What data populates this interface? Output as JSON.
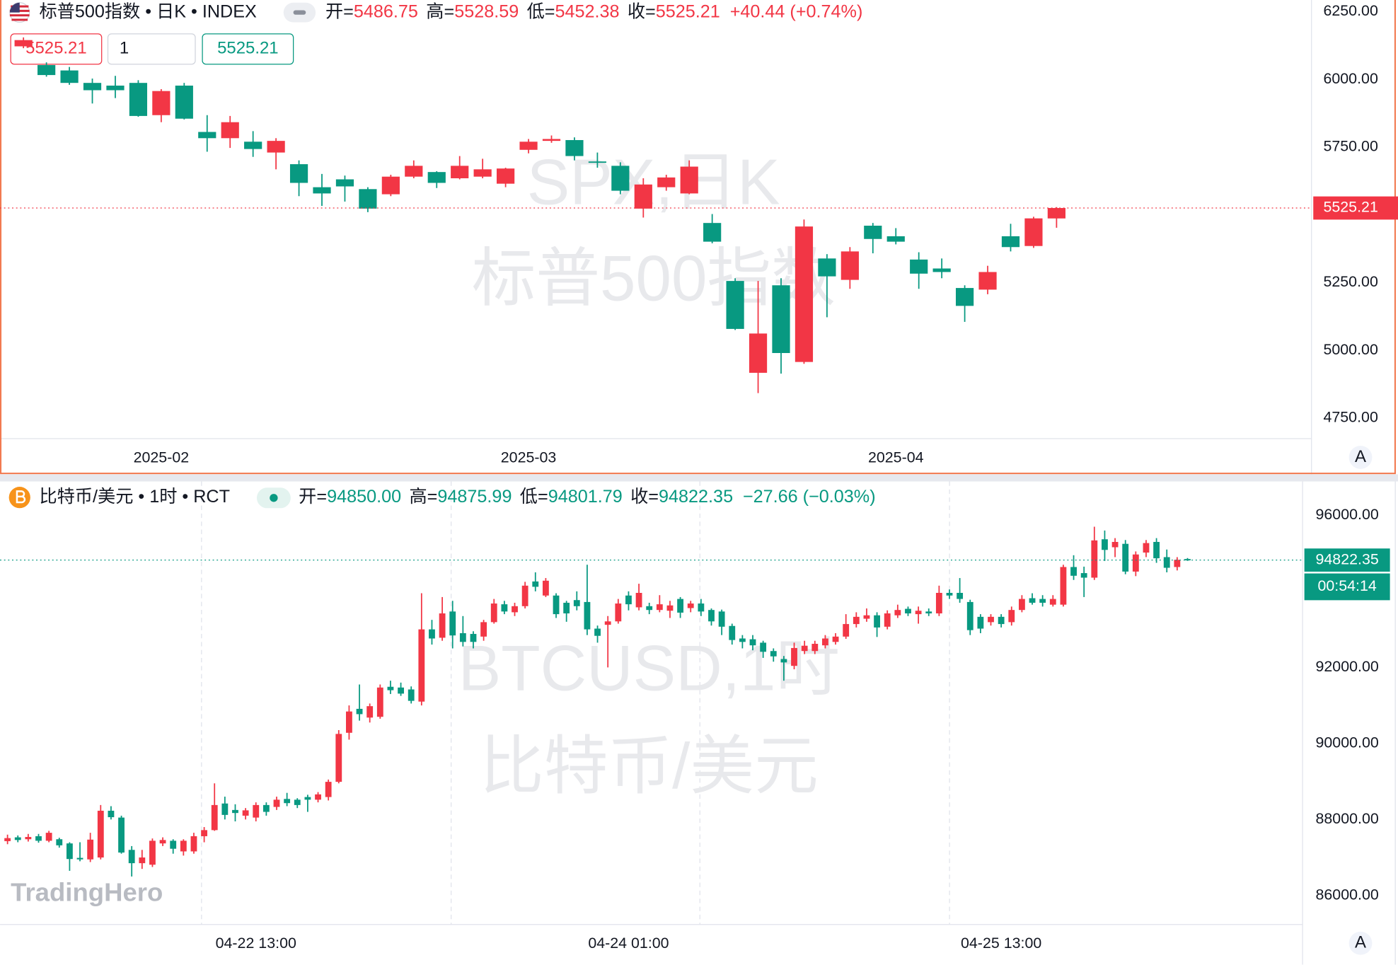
{
  "chart_data": [
    {
      "type": "candlestick",
      "title": "标普500指数 • 日K • INDEX",
      "watermark": [
        "SPX,日K",
        "标普500指数"
      ],
      "fields": [
        {
          "label": "开=",
          "value": "5486.75"
        },
        {
          "label": "高=",
          "value": "5528.59"
        },
        {
          "label": "低=",
          "value": "5452.38"
        },
        {
          "label": "收=",
          "value": "5525.21"
        }
      ],
      "change": "+40.44 (+0.74%)",
      "quantity": "1",
      "auto_scale_label": "A",
      "up_color": "#f23645",
      "down_color": "#089981",
      "ylim": [
        4674,
        6293
      ],
      "yticks": [
        {
          "value": 6250,
          "label": "6250.00"
        },
        {
          "value": 6000,
          "label": "6000.00"
        },
        {
          "value": 5750,
          "label": "5750.00"
        },
        {
          "value": 5250,
          "label": "5250.00"
        },
        {
          "value": 5000,
          "label": "5000.00"
        },
        {
          "value": 4750,
          "label": "4750.00"
        }
      ],
      "categories": [
        null,
        null,
        null,
        null,
        null,
        null,
        "2025-02",
        null,
        null,
        null,
        null,
        null,
        null,
        null,
        null,
        null,
        null,
        null,
        null,
        null,
        null,
        null,
        "2025-03",
        null,
        null,
        null,
        null,
        null,
        null,
        null,
        null,
        null,
        null,
        null,
        null,
        null,
        null,
        null,
        "2025-04",
        null,
        null,
        null,
        null,
        null,
        null,
        null
      ],
      "candles": [
        [
          6122,
          6155,
          6115,
          6145
        ],
        [
          6053,
          6063,
          6010,
          6016
        ],
        [
          6033,
          6046,
          5980,
          5987
        ],
        [
          5987,
          6003,
          5911,
          5960
        ],
        [
          5977,
          6013,
          5931,
          5960
        ],
        [
          5987,
          5997,
          5862,
          5865
        ],
        [
          5868,
          5964,
          5842,
          5957
        ],
        [
          5977,
          5987,
          5852,
          5855
        ],
        [
          5806,
          5868,
          5733,
          5783
        ],
        [
          5783,
          5865,
          5747,
          5842
        ],
        [
          5770,
          5809,
          5714,
          5743
        ],
        [
          5730,
          5783,
          5668,
          5773
        ],
        [
          5687,
          5701,
          5569,
          5618
        ],
        [
          5602,
          5651,
          5533,
          5579
        ],
        [
          5631,
          5645,
          5549,
          5605
        ],
        [
          5595,
          5602,
          5510,
          5523
        ],
        [
          5576,
          5648,
          5569,
          5641
        ],
        [
          5641,
          5701,
          5635,
          5681
        ],
        [
          5658,
          5661,
          5599,
          5618
        ],
        [
          5635,
          5717,
          5631,
          5681
        ],
        [
          5641,
          5707,
          5635,
          5668
        ],
        [
          5615,
          5674,
          5602,
          5671
        ],
        [
          5740,
          5780,
          5727,
          5770
        ],
        [
          5773,
          5793,
          5766,
          5780
        ],
        [
          5776,
          5786,
          5701,
          5717
        ],
        [
          5697,
          5730,
          5674,
          5694
        ],
        [
          5681,
          5694,
          5576,
          5589
        ],
        [
          5523,
          5635,
          5490,
          5612
        ],
        [
          5602,
          5648,
          5589,
          5638
        ],
        [
          5579,
          5701,
          5576,
          5678
        ],
        [
          5470,
          5503,
          5395,
          5401
        ],
        [
          5256,
          5266,
          5075,
          5079
        ],
        [
          4917,
          5256,
          4842,
          5062
        ],
        [
          5240,
          5266,
          4914,
          4990
        ],
        [
          4957,
          5483,
          4950,
          5457
        ],
        [
          5339,
          5355,
          5122,
          5273
        ],
        [
          5260,
          5381,
          5227,
          5365
        ],
        [
          5460,
          5470,
          5358,
          5411
        ],
        [
          5421,
          5451,
          5391,
          5401
        ],
        [
          5335,
          5362,
          5227,
          5283
        ],
        [
          5302,
          5339,
          5266,
          5289
        ],
        [
          5230,
          5240,
          5105,
          5164
        ],
        [
          5224,
          5312,
          5207,
          5289
        ],
        [
          5421,
          5467,
          5365,
          5381
        ],
        [
          5385,
          5493,
          5378,
          5487
        ],
        [
          5486.75,
          5528.59,
          5452.38,
          5525.21
        ]
      ]
    },
    {
      "type": "candlestick",
      "title": "比特币/美元 • 1时 • RCT",
      "watermark": [
        "BTCUSD,1时",
        "比特币/美元"
      ],
      "fields": [
        {
          "label": "开=",
          "value": "94850.00"
        },
        {
          "label": "高=",
          "value": "94875.99"
        },
        {
          "label": "低=",
          "value": "94801.79"
        },
        {
          "label": "收=",
          "value": "94822.35"
        }
      ],
      "change": "−27.66 (−0.03%)",
      "countdown": "00:54:14",
      "auto_scale_label": "A",
      "up_color": "#f23645",
      "down_color": "#089981",
      "ylim": [
        85237,
        96891
      ],
      "yticks": [
        {
          "value": 96000,
          "label": "96000.00"
        },
        {
          "value": 92000,
          "label": "92000.00"
        },
        {
          "value": 90000,
          "label": "90000.00"
        },
        {
          "value": 88000,
          "label": "88000.00"
        },
        {
          "value": 86000,
          "label": "86000.00"
        }
      ],
      "categories": [
        null,
        null,
        null,
        null,
        null,
        null,
        null,
        null,
        null,
        null,
        null,
        null,
        null,
        null,
        null,
        null,
        null,
        null,
        null,
        null,
        null,
        null,
        null,
        null,
        "04-22 13:00",
        null,
        null,
        null,
        null,
        null,
        null,
        null,
        null,
        null,
        null,
        null,
        null,
        null,
        null,
        null,
        null,
        null,
        null,
        null,
        null,
        null,
        null,
        null,
        null,
        null,
        null,
        null,
        null,
        null,
        null,
        null,
        null,
        null,
        null,
        null,
        "04-24 01:00",
        null,
        null,
        null,
        null,
        null,
        null,
        null,
        null,
        null,
        null,
        null,
        null,
        null,
        null,
        null,
        null,
        null,
        null,
        null,
        null,
        null,
        null,
        null,
        null,
        null,
        null,
        null,
        null,
        null,
        null,
        null,
        null,
        null,
        null,
        null,
        "04-25 13:00",
        null,
        null,
        null,
        null,
        null,
        null,
        null,
        null,
        null,
        null,
        null,
        null,
        null,
        null,
        null,
        null,
        null,
        null
      ],
      "candles": [
        [
          87430,
          87600,
          87350,
          87510
        ],
        [
          87530,
          87580,
          87400,
          87460
        ],
        [
          87480,
          87620,
          87420,
          87540
        ],
        [
          87560,
          87620,
          87390,
          87440
        ],
        [
          87440,
          87700,
          87400,
          87650
        ],
        [
          87480,
          87520,
          87260,
          87320
        ],
        [
          87370,
          87400,
          86650,
          86960
        ],
        [
          86990,
          87400,
          86900,
          86950
        ],
        [
          86950,
          87650,
          86880,
          87470
        ],
        [
          87000,
          88380,
          86950,
          88230
        ],
        [
          88230,
          88350,
          88000,
          88060
        ],
        [
          88050,
          88100,
          87100,
          87130
        ],
        [
          87200,
          87300,
          86500,
          86850
        ],
        [
          86850,
          87200,
          86700,
          87000
        ],
        [
          86810,
          87500,
          86750,
          87440
        ],
        [
          87370,
          87530,
          87300,
          87460
        ],
        [
          87440,
          87480,
          87100,
          87230
        ],
        [
          87160,
          87480,
          87050,
          87440
        ],
        [
          87160,
          87650,
          87100,
          87560
        ],
        [
          87560,
          87800,
          87400,
          87720
        ],
        [
          87720,
          88950,
          87700,
          88380
        ],
        [
          88420,
          88600,
          88000,
          88120
        ],
        [
          88250,
          88400,
          87950,
          88170
        ],
        [
          88100,
          88300,
          88000,
          88240
        ],
        [
          88050,
          88450,
          87950,
          88380
        ],
        [
          88380,
          88450,
          88100,
          88200
        ],
        [
          88330,
          88600,
          88250,
          88520
        ],
        [
          88540,
          88700,
          88350,
          88430
        ],
        [
          88520,
          88560,
          88300,
          88380
        ],
        [
          88590,
          88650,
          88200,
          88520
        ],
        [
          88520,
          88720,
          88450,
          88660
        ],
        [
          88590,
          89050,
          88500,
          88990
        ],
        [
          88990,
          90350,
          88950,
          90250
        ],
        [
          90280,
          91000,
          90100,
          90840
        ],
        [
          90910,
          91550,
          90600,
          90770
        ],
        [
          90680,
          91050,
          90550,
          90980
        ],
        [
          90700,
          91550,
          90650,
          91470
        ],
        [
          91490,
          91650,
          91300,
          91400
        ],
        [
          91470,
          91600,
          91250,
          91310
        ],
        [
          91420,
          91500,
          91050,
          91120
        ],
        [
          91100,
          93950,
          91000,
          93000
        ],
        [
          93000,
          93250,
          92600,
          92760
        ],
        [
          92780,
          93850,
          92700,
          93420
        ],
        [
          93470,
          93750,
          92500,
          92840
        ],
        [
          92900,
          93350,
          92550,
          92670
        ],
        [
          92880,
          92950,
          92500,
          92670
        ],
        [
          92810,
          93250,
          92700,
          93190
        ],
        [
          93190,
          93800,
          93150,
          93680
        ],
        [
          93660,
          93750,
          93400,
          93470
        ],
        [
          93450,
          93700,
          93350,
          93610
        ],
        [
          93610,
          94250,
          93550,
          94150
        ],
        [
          94260,
          94500,
          94000,
          94120
        ],
        [
          93890,
          94350,
          93850,
          94280
        ],
        [
          93890,
          93950,
          93300,
          93400
        ],
        [
          93700,
          93750,
          93200,
          93420
        ],
        [
          93770,
          94000,
          93500,
          93610
        ],
        [
          93720,
          94700,
          92850,
          93000
        ],
        [
          93020,
          93100,
          92650,
          92830
        ],
        [
          93120,
          93350,
          92000,
          93210
        ],
        [
          93210,
          93800,
          93150,
          93680
        ],
        [
          93890,
          94000,
          93500,
          93660
        ],
        [
          93580,
          94200,
          93500,
          93960
        ],
        [
          93610,
          93700,
          93400,
          93510
        ],
        [
          93510,
          93900,
          93450,
          93660
        ],
        [
          93490,
          93750,
          93300,
          93630
        ],
        [
          93800,
          93850,
          93300,
          93440
        ],
        [
          93560,
          93750,
          93450,
          93680
        ],
        [
          93680,
          93800,
          93350,
          93470
        ],
        [
          93510,
          93550,
          93100,
          93210
        ],
        [
          93470,
          93520,
          92850,
          93070
        ],
        [
          93090,
          93150,
          92600,
          92720
        ],
        [
          92760,
          92850,
          92500,
          92670
        ],
        [
          92740,
          92850,
          92450,
          92580
        ],
        [
          92650,
          92700,
          92250,
          92410
        ],
        [
          92430,
          92500,
          92150,
          92290
        ],
        [
          92220,
          92300,
          91650,
          92130
        ],
        [
          92040,
          92650,
          91950,
          92510
        ],
        [
          92430,
          92700,
          92350,
          92570
        ],
        [
          92430,
          92700,
          92350,
          92620
        ],
        [
          92580,
          92850,
          92500,
          92760
        ],
        [
          92670,
          92900,
          92600,
          92810
        ],
        [
          92810,
          93400,
          92750,
          93140
        ],
        [
          93140,
          93450,
          93050,
          93330
        ],
        [
          93280,
          93550,
          93200,
          93370
        ],
        [
          93370,
          93450,
          92800,
          93050
        ],
        [
          93070,
          93500,
          93000,
          93420
        ],
        [
          93370,
          93650,
          93300,
          93510
        ],
        [
          93540,
          93600,
          93350,
          93420
        ],
        [
          93400,
          93600,
          93150,
          93490
        ],
        [
          93470,
          93550,
          93350,
          93420
        ],
        [
          93420,
          94150,
          93350,
          93960
        ],
        [
          93960,
          94050,
          93800,
          93890
        ],
        [
          93960,
          94350,
          93700,
          93800
        ],
        [
          93720,
          93780,
          92850,
          92980
        ],
        [
          93330,
          93400,
          92900,
          93020
        ],
        [
          93190,
          93400,
          93100,
          93330
        ],
        [
          93330,
          93400,
          93050,
          93140
        ],
        [
          93190,
          93600,
          93100,
          93510
        ],
        [
          93510,
          93900,
          93450,
          93800
        ],
        [
          93820,
          93950,
          93650,
          93700
        ],
        [
          93800,
          93900,
          93600,
          93700
        ],
        [
          93650,
          93900,
          93600,
          93800
        ],
        [
          93650,
          94700,
          93600,
          94640
        ],
        [
          94640,
          94950,
          94300,
          94410
        ],
        [
          94480,
          94650,
          93850,
          94360
        ],
        [
          94360,
          95700,
          94300,
          95340
        ],
        [
          95370,
          95600,
          94800,
          95090
        ],
        [
          95160,
          95400,
          94900,
          95300
        ],
        [
          95250,
          95350,
          94450,
          94520
        ],
        [
          94520,
          95050,
          94400,
          94970
        ],
        [
          95020,
          95350,
          94900,
          95270
        ],
        [
          95300,
          95400,
          94750,
          94870
        ],
        [
          94900,
          95100,
          94500,
          94620
        ],
        [
          94640,
          94900,
          94550,
          94830
        ],
        [
          94850,
          94875.99,
          94801.79,
          94822.35
        ]
      ]
    }
  ],
  "logo": "TradingHero"
}
